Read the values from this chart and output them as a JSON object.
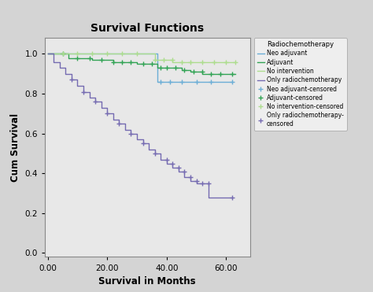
{
  "title": "Survival Functions",
  "xlabel": "Survival in Months",
  "ylabel": "Cum Survival",
  "legend_title": "Radiochemotherapy",
  "xlim": [
    -1,
    68
  ],
  "ylim": [
    -0.02,
    1.08
  ],
  "xticks": [
    0.0,
    20.0,
    40.0,
    60.0
  ],
  "yticks": [
    0.0,
    0.2,
    0.4,
    0.6,
    0.8,
    1.0
  ],
  "plot_bg_color": "#e8e8e8",
  "fig_bg_color": "#d4d4d4",
  "colors": {
    "neo_adjuvant": "#6baed6",
    "adjuvant": "#31a354",
    "no_intervention": "#addd8e",
    "only_radio": "#756bb1"
  },
  "neo_adjuvant": {
    "x": [
      0,
      37,
      37,
      55,
      55,
      62
    ],
    "y": [
      1.0,
      1.0,
      0.86,
      0.86,
      0.86,
      0.86
    ],
    "censored_x": [
      38,
      41,
      45,
      50,
      55,
      62
    ],
    "censored_y": [
      0.86,
      0.86,
      0.86,
      0.86,
      0.86,
      0.86
    ]
  },
  "adjuvant": {
    "x": [
      0,
      7,
      7,
      15,
      15,
      22,
      22,
      30,
      30,
      37,
      37,
      45,
      45,
      48,
      48,
      52,
      52,
      58,
      58,
      63
    ],
    "y": [
      1.0,
      1.0,
      0.98,
      0.98,
      0.97,
      0.97,
      0.96,
      0.96,
      0.95,
      0.95,
      0.93,
      0.93,
      0.92,
      0.92,
      0.91,
      0.91,
      0.9,
      0.9,
      0.9,
      0.9
    ],
    "censored_x": [
      5,
      10,
      14,
      18,
      22,
      25,
      28,
      32,
      35,
      38,
      40,
      43,
      46,
      49,
      52,
      55,
      58,
      62
    ],
    "censored_y": [
      1.0,
      0.98,
      0.98,
      0.97,
      0.96,
      0.96,
      0.96,
      0.95,
      0.95,
      0.93,
      0.93,
      0.93,
      0.92,
      0.91,
      0.91,
      0.9,
      0.9,
      0.9
    ]
  },
  "no_intervention": {
    "x": [
      0,
      36,
      36,
      42,
      42,
      48,
      48,
      55,
      55,
      63
    ],
    "y": [
      1.0,
      1.0,
      0.97,
      0.97,
      0.96,
      0.96,
      0.96,
      0.96,
      0.96,
      0.96
    ],
    "censored_x": [
      5,
      10,
      15,
      20,
      25,
      30,
      36,
      39,
      42,
      45,
      48,
      52,
      56,
      60,
      63
    ],
    "censored_y": [
      1.0,
      1.0,
      1.0,
      1.0,
      1.0,
      1.0,
      0.97,
      0.97,
      0.97,
      0.96,
      0.96,
      0.96,
      0.96,
      0.96,
      0.96
    ]
  },
  "only_radio": {
    "x": [
      0,
      2,
      2,
      4,
      4,
      6,
      6,
      8,
      8,
      10,
      10,
      12,
      12,
      14,
      14,
      16,
      16,
      18,
      18,
      20,
      20,
      22,
      22,
      24,
      24,
      26,
      26,
      28,
      28,
      30,
      30,
      32,
      32,
      34,
      34,
      36,
      36,
      38,
      38,
      40,
      40,
      42,
      42,
      44,
      44,
      46,
      46,
      48,
      48,
      50,
      50,
      52,
      52,
      54,
      54,
      56,
      56,
      58,
      58,
      60,
      60,
      62
    ],
    "y": [
      1.0,
      1.0,
      0.96,
      0.96,
      0.93,
      0.93,
      0.9,
      0.9,
      0.87,
      0.87,
      0.84,
      0.84,
      0.81,
      0.81,
      0.78,
      0.78,
      0.76,
      0.76,
      0.73,
      0.73,
      0.7,
      0.7,
      0.67,
      0.67,
      0.65,
      0.65,
      0.62,
      0.62,
      0.6,
      0.6,
      0.57,
      0.57,
      0.55,
      0.55,
      0.52,
      0.52,
      0.5,
      0.5,
      0.47,
      0.47,
      0.45,
      0.45,
      0.43,
      0.43,
      0.41,
      0.41,
      0.38,
      0.38,
      0.36,
      0.36,
      0.35,
      0.35,
      0.35,
      0.35,
      0.28,
      0.28,
      0.28,
      0.28,
      0.28,
      0.28,
      0.28,
      0.28
    ],
    "censored_x": [
      8,
      12,
      16,
      20,
      24,
      28,
      32,
      36,
      40,
      42,
      44,
      46,
      48,
      50,
      52,
      54,
      62
    ],
    "censored_y": [
      0.87,
      0.81,
      0.76,
      0.7,
      0.65,
      0.6,
      0.55,
      0.5,
      0.47,
      0.45,
      0.43,
      0.41,
      0.38,
      0.36,
      0.35,
      0.35,
      0.28
    ]
  },
  "legend_entries": [
    "Neo adjuvant",
    "Adjuvant",
    "No intervention",
    "Only radiochemotherapy",
    "Neo adjuvant-censored",
    "Adjuvant-censored",
    "No intervention-censored",
    "Only radiochemotherapy-\ncensored"
  ]
}
